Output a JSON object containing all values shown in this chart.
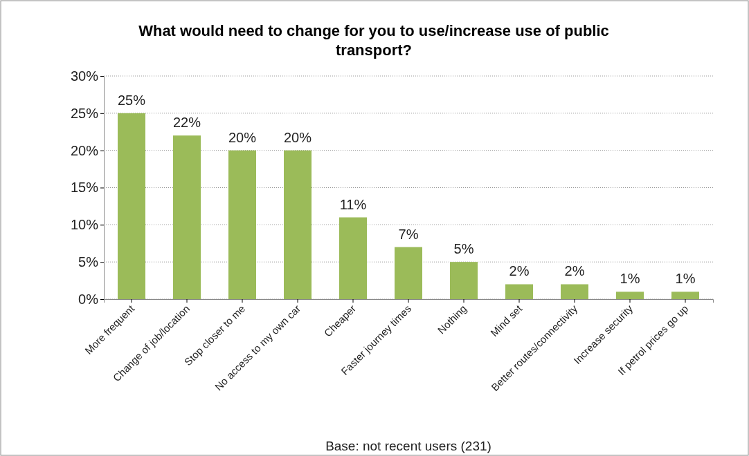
{
  "chart_data": {
    "type": "bar",
    "title": "What would need to change for you to use/increase use of public transport?",
    "categories": [
      "More frequent",
      "Change of job/location",
      "Stop closer to me",
      "No access to my own car",
      "Cheaper",
      "Faster journey times",
      "Nothing",
      "Mind set",
      "Better routes/connectivity",
      "Increase security",
      "If petrol prices go up"
    ],
    "values": [
      25,
      22,
      20,
      20,
      11,
      7,
      5,
      2,
      2,
      1,
      1
    ],
    "value_labels": [
      "25%",
      "22%",
      "20%",
      "20%",
      "11%",
      "7%",
      "5%",
      "2%",
      "2%",
      "1%",
      "1%"
    ],
    "color": "#9bbb59",
    "ylim": [
      0,
      30
    ],
    "yticks": [
      {
        "value": 0,
        "label": "0%"
      },
      {
        "value": 5,
        "label": "5%"
      },
      {
        "value": 10,
        "label": "10%"
      },
      {
        "value": 15,
        "label": "15%"
      },
      {
        "value": 20,
        "label": "20%"
      },
      {
        "value": 25,
        "label": "25%"
      },
      {
        "value": 30,
        "label": "30%"
      }
    ],
    "grid": "y",
    "annotations": [
      "Base: not recent users (231)"
    ]
  }
}
